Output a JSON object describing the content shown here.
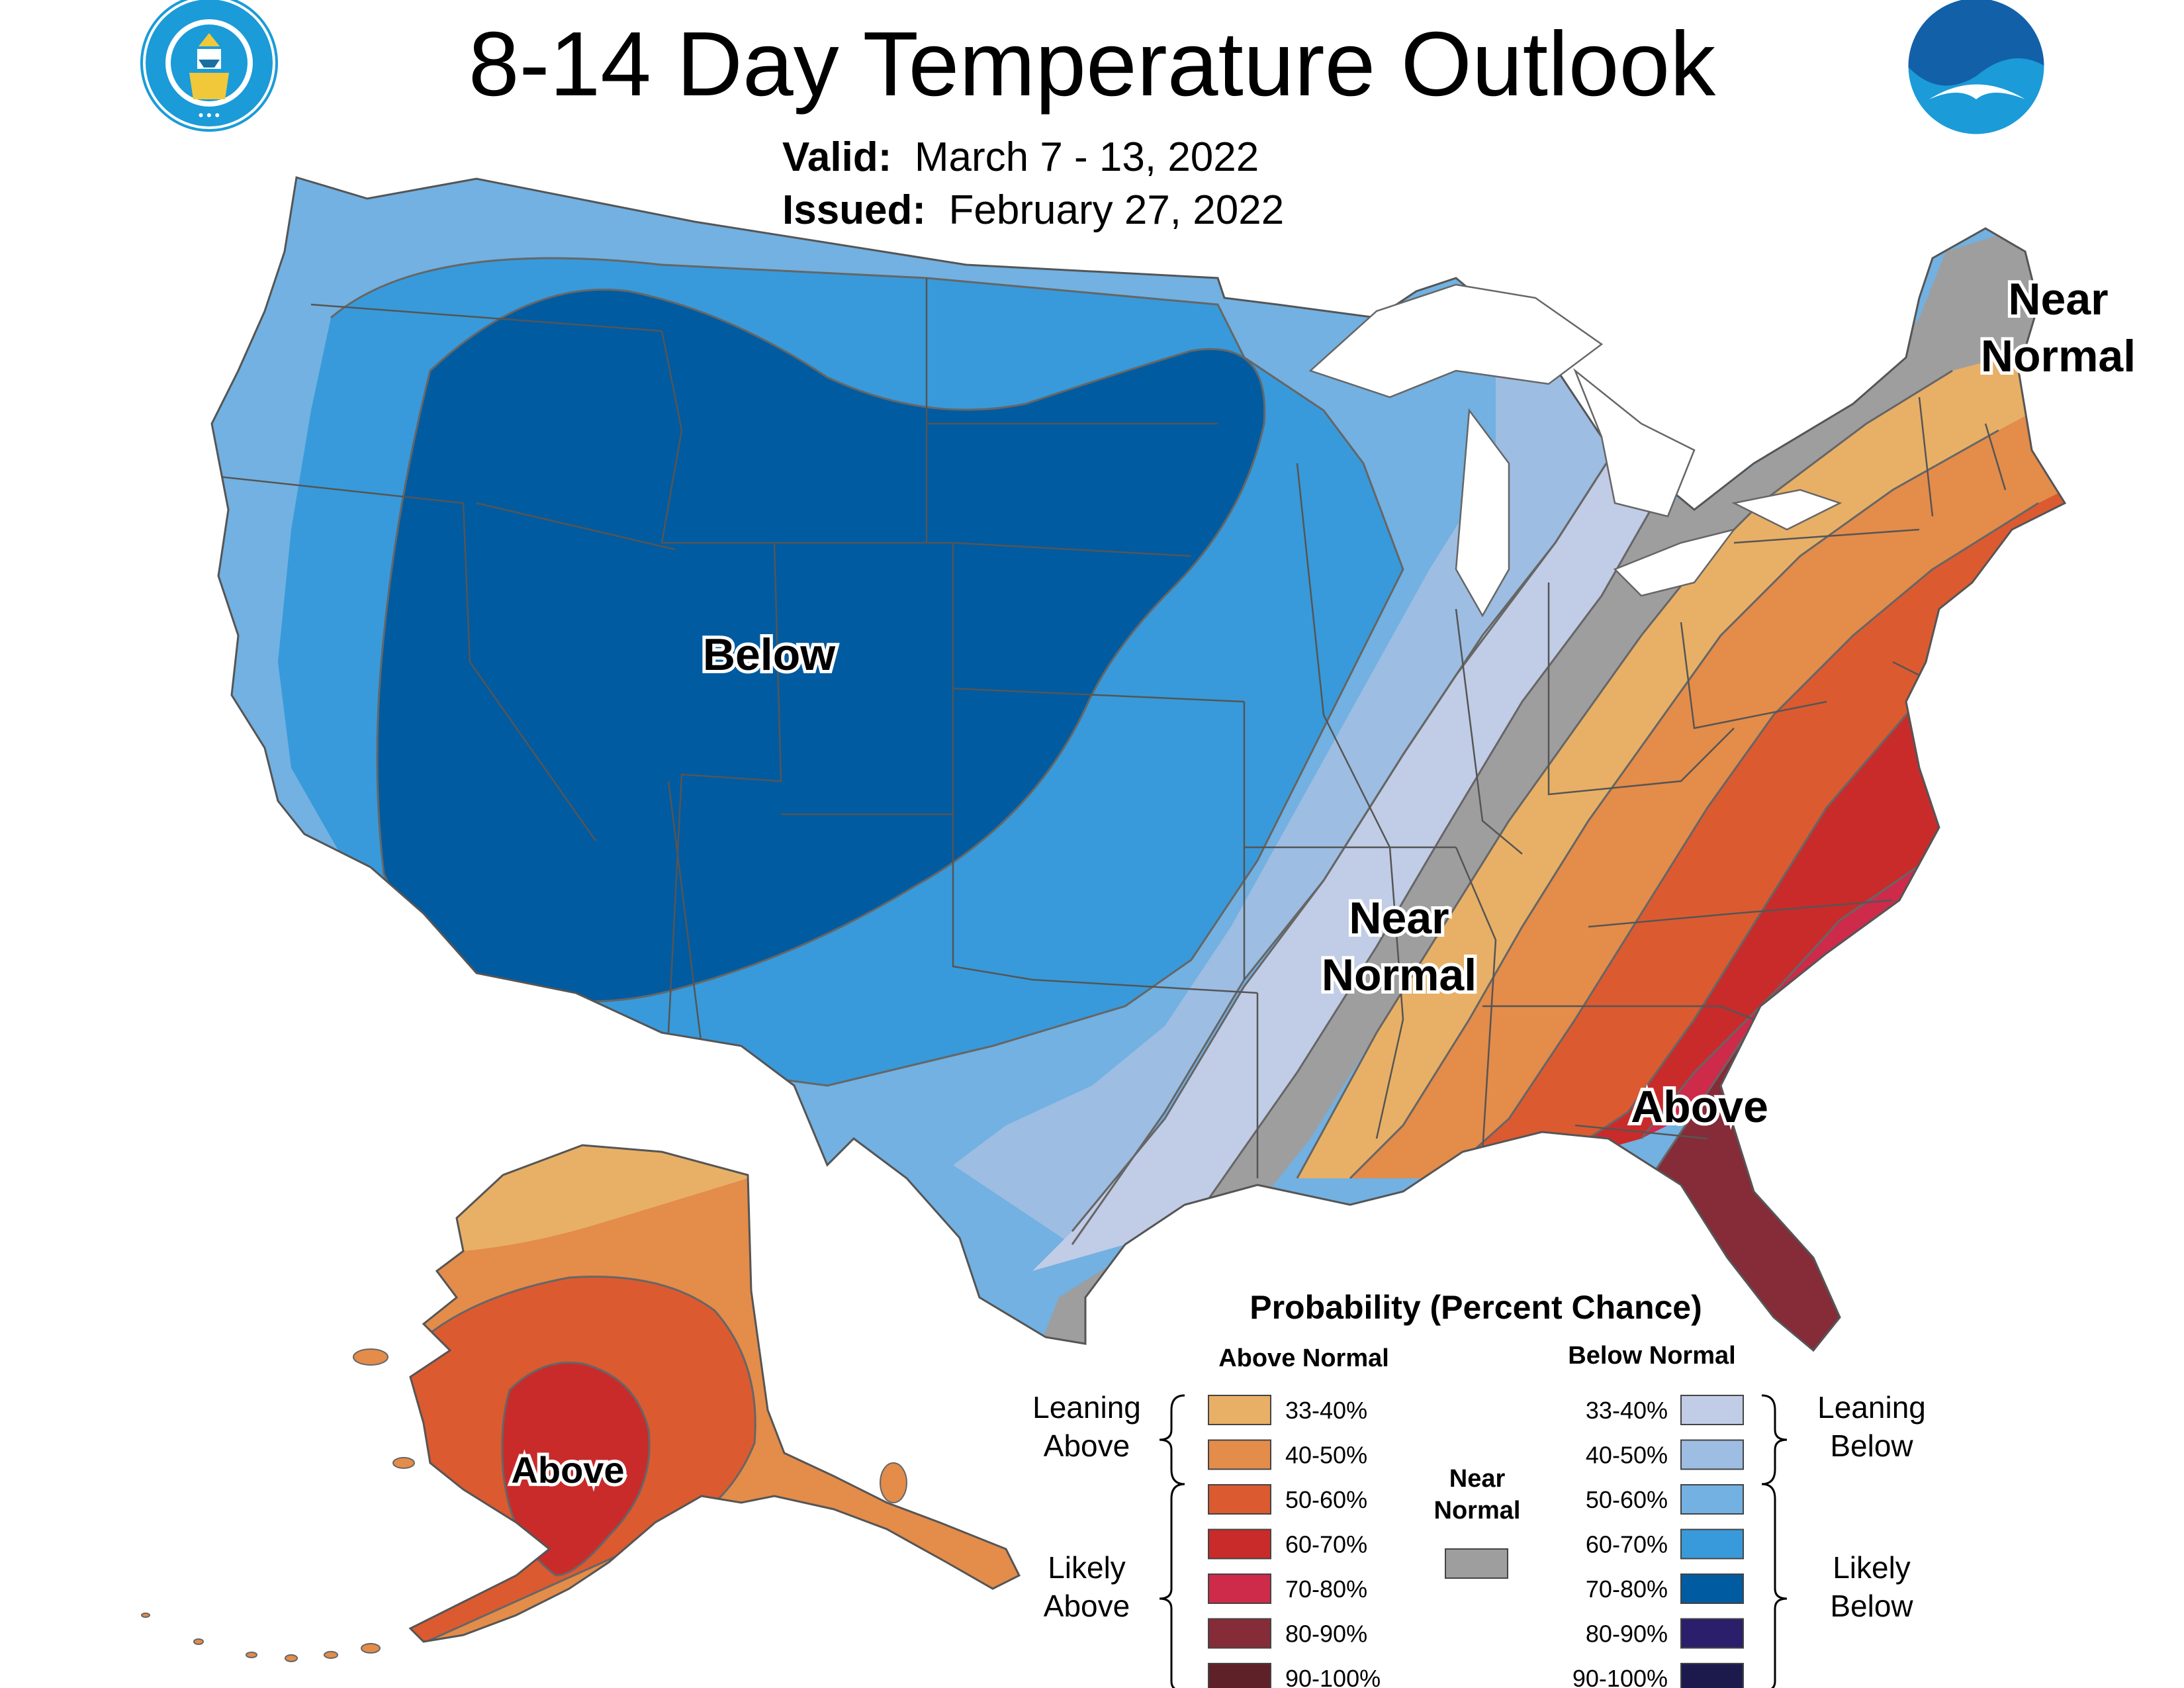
{
  "title": "8-14 Day Temperature Outlook",
  "valid": {
    "label": "Valid:",
    "value": "March 7 - 13, 2022"
  },
  "issued": {
    "label": "Issued:",
    "value": "February 27, 2022"
  },
  "logos": {
    "left": "doc-seal-icon",
    "right": "noaa-logo-icon"
  },
  "map_labels": {
    "below_west": "Below",
    "near_normal_central_1": "Near",
    "near_normal_central_2": "Normal",
    "near_normal_ne_1": "Near",
    "near_normal_ne_2": "Normal",
    "above_southeast": "Above",
    "above_alaska": "Above"
  },
  "legend": {
    "title": "Probability (Percent Chance)",
    "above_header": "Above Normal",
    "below_header": "Below Normal",
    "near_header_1": "Near",
    "near_header_2": "Normal",
    "leaning_above_1": "Leaning",
    "leaning_above_2": "Above",
    "likely_above_1": "Likely",
    "likely_above_2": "Above",
    "leaning_below_1": "Leaning",
    "leaning_below_2": "Below",
    "likely_below_1": "Likely",
    "likely_below_2": "Below",
    "above": [
      {
        "label": "33-40%",
        "color": "#E8B066"
      },
      {
        "label": "40-50%",
        "color": "#E48C4A"
      },
      {
        "label": "50-60%",
        "color": "#DC5A30"
      },
      {
        "label": "60-70%",
        "color": "#C92B2A"
      },
      {
        "label": "70-80%",
        "color": "#CE2A4A"
      },
      {
        "label": "80-90%",
        "color": "#862B38"
      },
      {
        "label": "90-100%",
        "color": "#5E2128"
      }
    ],
    "below": [
      {
        "label": "33-40%",
        "color": "#C1CCE6"
      },
      {
        "label": "40-50%",
        "color": "#9DBDE2"
      },
      {
        "label": "50-60%",
        "color": "#72B1E1"
      },
      {
        "label": "60-70%",
        "color": "#389ADA"
      },
      {
        "label": "70-80%",
        "color": "#005BA0"
      },
      {
        "label": "80-90%",
        "color": "#2B1F6B"
      },
      {
        "label": "90-100%",
        "color": "#1C1A4D"
      }
    ],
    "near_color": "#9E9E9E"
  }
}
